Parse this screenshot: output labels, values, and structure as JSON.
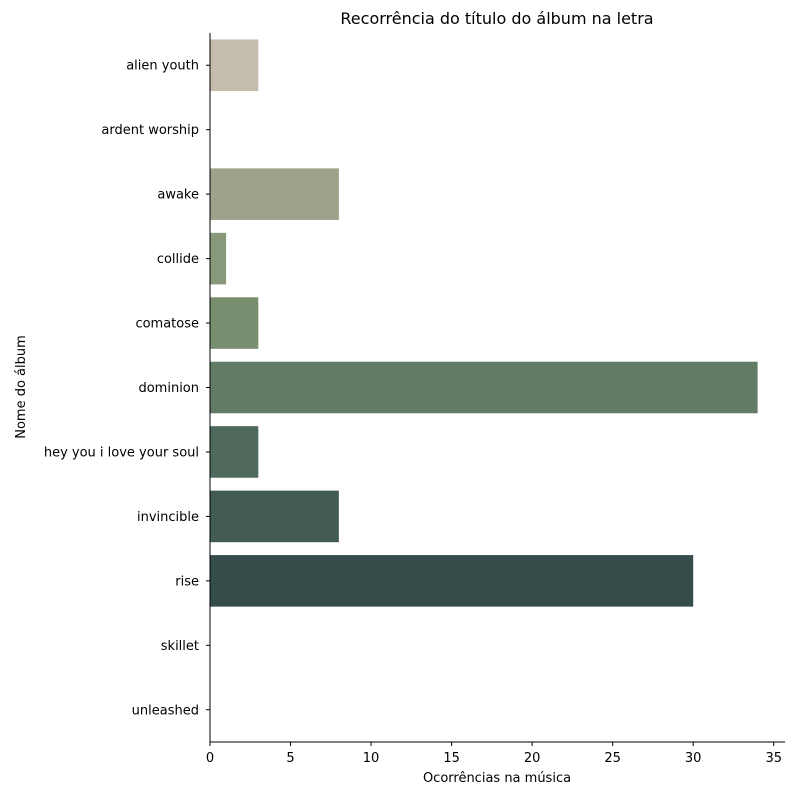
{
  "chart_data": {
    "type": "bar",
    "orientation": "horizontal",
    "title": "Recorrência do título do álbum na letra",
    "xlabel": "Ocorrências na música",
    "ylabel": "Nome do álbum",
    "xlim": [
      0,
      35.7
    ],
    "xticks": [
      0,
      5,
      10,
      15,
      20,
      25,
      30,
      35
    ],
    "grid": false,
    "categories": [
      "alien youth",
      "ardent worship",
      "awake",
      "collide",
      "comatose",
      "dominion",
      "hey you i love your soul",
      "invincible",
      "rise",
      "skillet",
      "unleashed"
    ],
    "values": [
      3,
      0,
      8,
      1,
      3,
      34,
      3,
      8,
      30,
      0,
      0
    ],
    "colors": [
      "#c4bdad",
      "#b1b09f",
      "#9da38a",
      "#88987a",
      "#778e6f",
      "#617b65",
      "#4f6a5d",
      "#425c54",
      "#344d4a",
      "#2b403e",
      "#243634"
    ]
  }
}
